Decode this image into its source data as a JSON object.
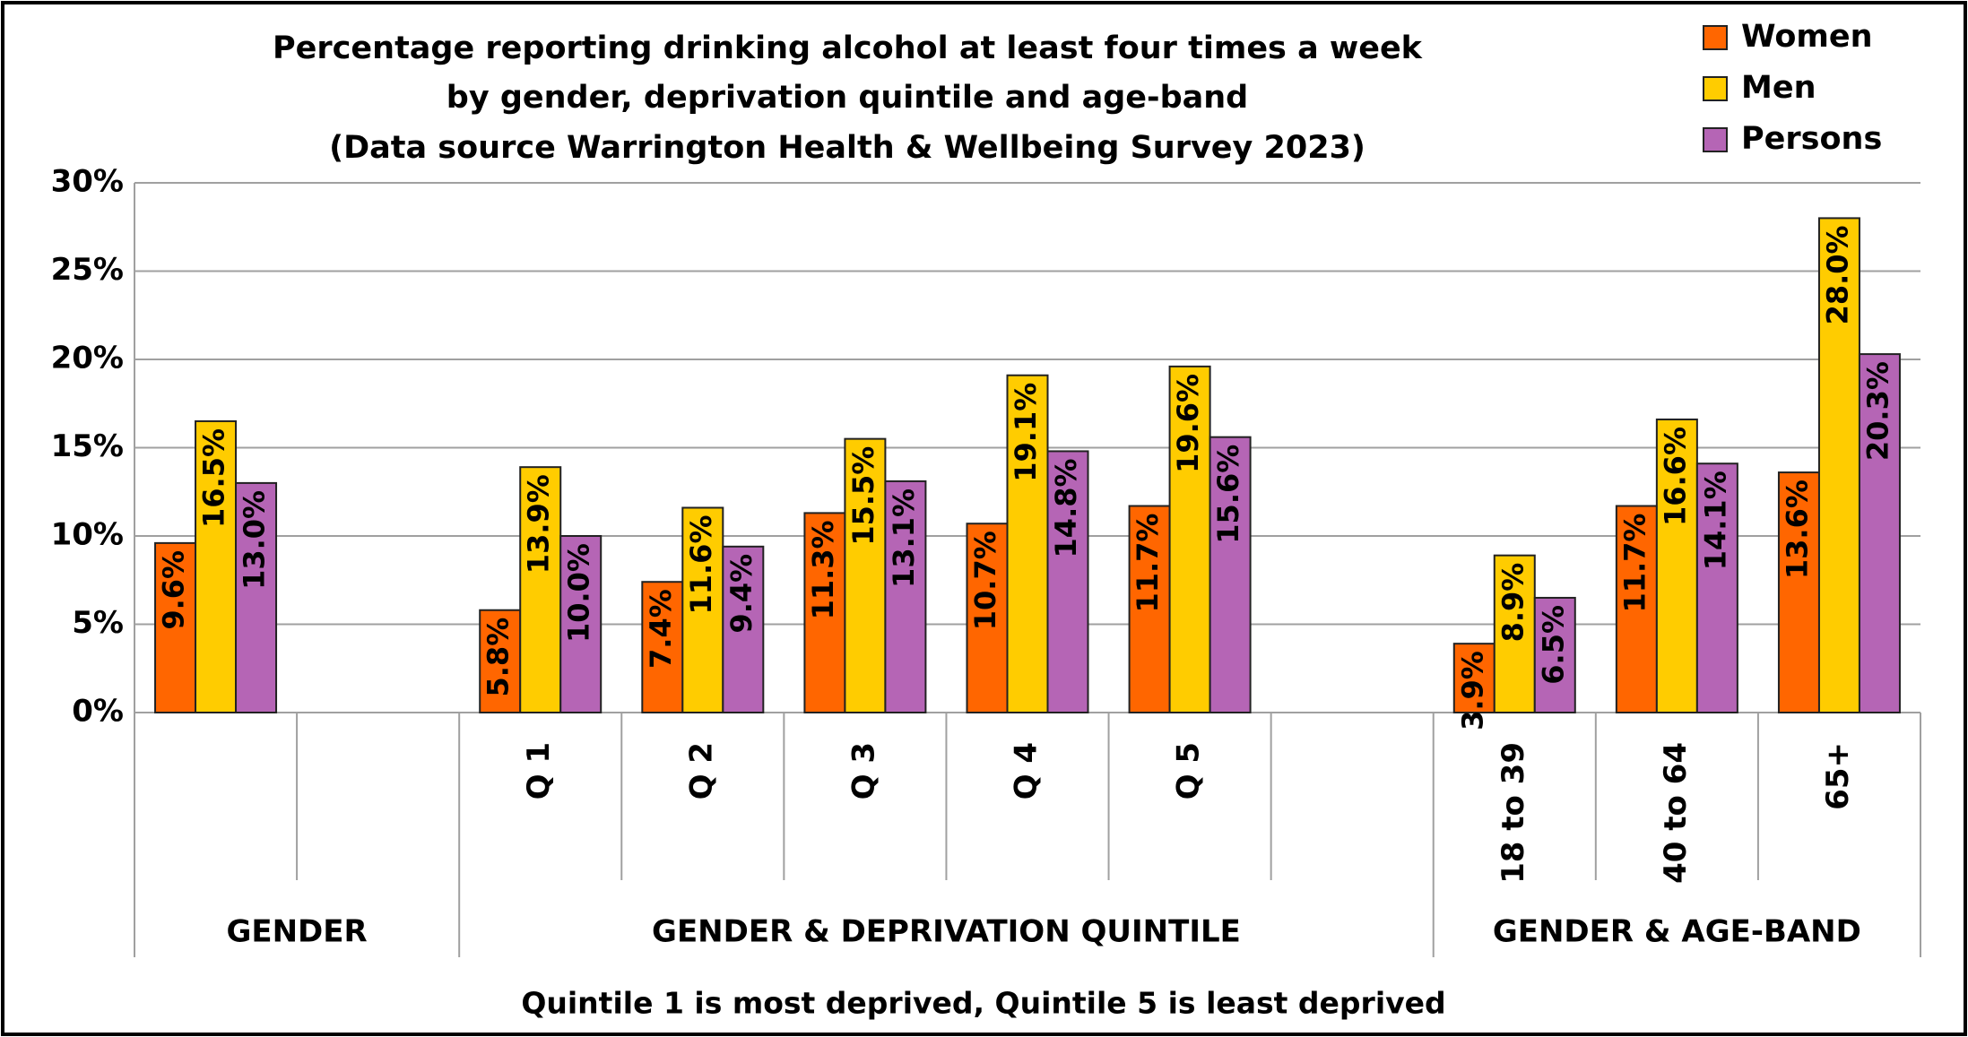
{
  "chart_data": {
    "type": "bar",
    "title": [
      "Percentage reporting drinking alcohol at least four times a week",
      "by gender, deprivation quintile and age-band",
      "(Data source Warrington Health & Wellbeing Survey 2023)"
    ],
    "categories": [
      null,
      null,
      "Q 1",
      "Q 2",
      "Q 3",
      "Q 4",
      "Q 5",
      null,
      "18 to 39",
      "40 to 64",
      "65+"
    ],
    "groups": [
      {
        "label": "GENDER",
        "count": 2
      },
      {
        "label": "GENDER & DEPRIVATION QUINTILE",
        "count": 6
      },
      {
        "label": "GENDER & AGE-BAND",
        "count": 3
      }
    ],
    "series": [
      {
        "name": "Women",
        "color": "#ff6600",
        "values": [
          9.6,
          null,
          5.8,
          7.4,
          11.3,
          10.7,
          11.7,
          null,
          3.9,
          11.7,
          13.6
        ],
        "value_labels": [
          "9.6%",
          null,
          "5.8%",
          "7.4%",
          "11.3%",
          "10.7%",
          "11.7%",
          null,
          "3.9%",
          "11.7%",
          "13.6%"
        ]
      },
      {
        "name": "Men",
        "color": "#ffcc00",
        "values": [
          16.5,
          null,
          13.9,
          11.6,
          15.5,
          19.1,
          19.6,
          null,
          8.9,
          16.6,
          28.0
        ],
        "value_labels": [
          "16.5%",
          null,
          "13.9%",
          "11.6%",
          "15.5%",
          "19.1%",
          "19.6%",
          null,
          "8.9%",
          "16.6%",
          "28.0%"
        ]
      },
      {
        "name": "Persons",
        "color": "#b565b5",
        "values": [
          13.0,
          null,
          10.0,
          9.4,
          13.1,
          14.8,
          15.6,
          null,
          6.5,
          14.1,
          20.3
        ],
        "value_labels": [
          "13.0%",
          null,
          "10.0%",
          "9.4%",
          "13.1%",
          "14.8%",
          "15.6%",
          null,
          "6.5%",
          "14.1%",
          "20.3%"
        ]
      }
    ],
    "ylim": [
      0,
      30
    ],
    "yticks": [
      {
        "value": 0,
        "label": "0%"
      },
      {
        "value": 5,
        "label": "5%"
      },
      {
        "value": 10,
        "label": "10%"
      },
      {
        "value": 15,
        "label": "15%"
      },
      {
        "value": 20,
        "label": "20%"
      },
      {
        "value": 25,
        "label": "25%"
      },
      {
        "value": 30,
        "label": "30%"
      }
    ],
    "grid": true,
    "legend": "top-right",
    "footnote": "Quintile 1 is most deprived, Quintile 5 is least deprived"
  }
}
